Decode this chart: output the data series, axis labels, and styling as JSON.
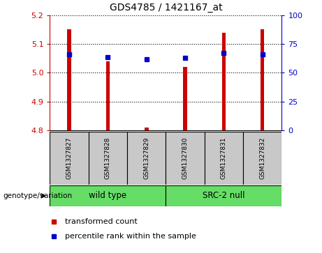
{
  "title": "GDS4785 / 1421167_at",
  "samples": [
    "GSM1327827",
    "GSM1327828",
    "GSM1327829",
    "GSM1327830",
    "GSM1327831",
    "GSM1327832"
  ],
  "bar_values": [
    5.15,
    5.04,
    4.81,
    5.02,
    5.14,
    5.15
  ],
  "bar_bottom": 4.8,
  "percentile_values": [
    5.065,
    5.055,
    5.048,
    5.052,
    5.068,
    5.065
  ],
  "ylim_left": [
    4.8,
    5.2
  ],
  "ylim_right": [
    0,
    100
  ],
  "yticks_left": [
    4.8,
    4.9,
    5.0,
    5.1,
    5.2
  ],
  "yticks_right": [
    0,
    25,
    50,
    75,
    100
  ],
  "group1_label": "wild type",
  "group2_label": "SRC-2 null",
  "group_color": "#66DD66",
  "group_label_text": "genotype/variation",
  "bar_color": "#CC0000",
  "dot_color": "#0000CC",
  "left_tick_color": "#CC0000",
  "right_tick_color": "#0000CC",
  "sample_box_color": "#C8C8C8",
  "legend_red_label": "transformed count",
  "legend_blue_label": "percentile rank within the sample",
  "bar_width": 0.1
}
